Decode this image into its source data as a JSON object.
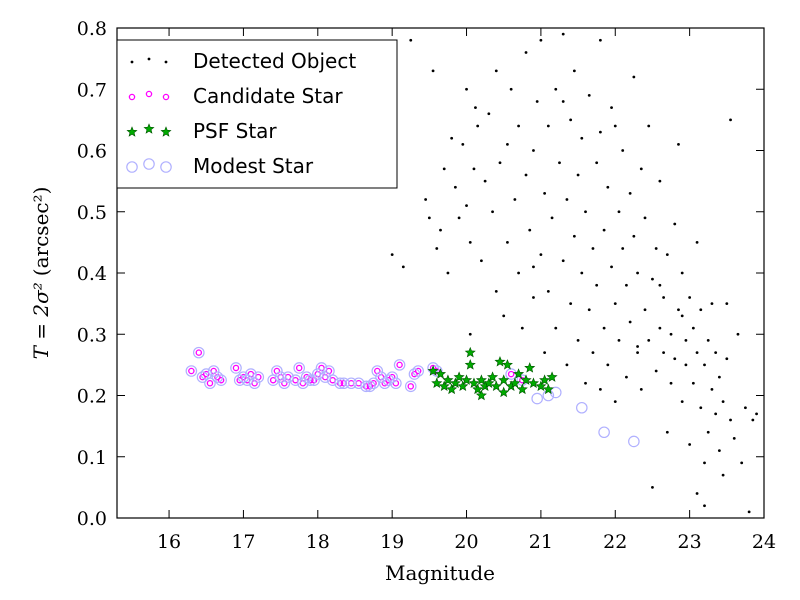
{
  "chart_data": {
    "type": "scatter",
    "title": "",
    "xlabel": "Magnitude",
    "ylabel_math": "T = 2σ²",
    "ylabel_unit": "(arcsec²)",
    "xlim": [
      15.3,
      24.0
    ],
    "ylim": [
      0.0,
      0.8
    ],
    "xticks": [
      16,
      17,
      18,
      19,
      20,
      21,
      22,
      23,
      24
    ],
    "yticks": [
      0.0,
      0.1,
      0.2,
      0.3,
      0.4,
      0.5,
      0.6,
      0.7,
      0.8
    ],
    "grid": false,
    "legend_position": "top-left",
    "series": [
      {
        "name": "Detected Object",
        "marker": "dot",
        "color": "#000000",
        "points": [
          [
            19.0,
            0.43
          ],
          [
            19.15,
            0.41
          ],
          [
            19.25,
            0.78
          ],
          [
            19.45,
            0.52
          ],
          [
            19.5,
            0.49
          ],
          [
            19.55,
            0.73
          ],
          [
            19.6,
            0.44
          ],
          [
            19.65,
            0.47
          ],
          [
            19.7,
            0.57
          ],
          [
            19.75,
            0.4
          ],
          [
            19.8,
            0.62
          ],
          [
            19.85,
            0.54
          ],
          [
            19.9,
            0.49
          ],
          [
            19.95,
            0.61
          ],
          [
            20.0,
            0.51
          ],
          [
            20.0,
            0.7
          ],
          [
            20.05,
            0.45
          ],
          [
            20.05,
            0.3
          ],
          [
            20.1,
            0.57
          ],
          [
            20.12,
            0.67
          ],
          [
            20.15,
            0.64
          ],
          [
            20.2,
            0.42
          ],
          [
            20.25,
            0.55
          ],
          [
            20.3,
            0.66
          ],
          [
            20.35,
            0.5
          ],
          [
            20.4,
            0.37
          ],
          [
            20.4,
            0.73
          ],
          [
            20.45,
            0.58
          ],
          [
            20.5,
            0.33
          ],
          [
            20.55,
            0.45
          ],
          [
            20.55,
            0.61
          ],
          [
            20.6,
            0.7
          ],
          [
            20.65,
            0.52
          ],
          [
            20.7,
            0.4
          ],
          [
            20.7,
            0.64
          ],
          [
            20.75,
            0.31
          ],
          [
            20.8,
            0.56
          ],
          [
            20.8,
            0.76
          ],
          [
            20.85,
            0.47
          ],
          [
            20.9,
            0.36
          ],
          [
            20.9,
            0.6
          ],
          [
            20.95,
            0.68
          ],
          [
            21.0,
            0.43
          ],
          [
            21.0,
            0.78
          ],
          [
            21.05,
            0.27
          ],
          [
            21.05,
            0.53
          ],
          [
            21.1,
            0.64
          ],
          [
            21.1,
            0.37
          ],
          [
            21.15,
            0.49
          ],
          [
            21.2,
            0.7
          ],
          [
            21.2,
            0.31
          ],
          [
            21.25,
            0.58
          ],
          [
            21.3,
            0.42
          ],
          [
            21.3,
            0.79
          ],
          [
            21.35,
            0.25
          ],
          [
            21.35,
            0.52
          ],
          [
            21.4,
            0.65
          ],
          [
            21.4,
            0.35
          ],
          [
            21.45,
            0.46
          ],
          [
            21.45,
            0.73
          ],
          [
            21.5,
            0.29
          ],
          [
            21.5,
            0.56
          ],
          [
            21.55,
            0.4
          ],
          [
            21.55,
            0.62
          ],
          [
            21.6,
            0.22
          ],
          [
            21.6,
            0.5
          ],
          [
            21.65,
            0.34
          ],
          [
            21.65,
            0.69
          ],
          [
            21.7,
            0.44
          ],
          [
            21.7,
            0.27
          ],
          [
            21.75,
            0.58
          ],
          [
            21.75,
            0.38
          ],
          [
            21.8,
            0.21
          ],
          [
            21.8,
            0.63
          ],
          [
            21.85,
            0.47
          ],
          [
            21.85,
            0.31
          ],
          [
            21.9,
            0.54
          ],
          [
            21.9,
            0.25
          ],
          [
            21.95,
            0.41
          ],
          [
            21.95,
            0.67
          ],
          [
            22.0,
            0.19
          ],
          [
            22.0,
            0.35
          ],
          [
            22.05,
            0.5
          ],
          [
            22.05,
            0.29
          ],
          [
            22.1,
            0.44
          ],
          [
            22.1,
            0.6
          ],
          [
            22.15,
            0.23
          ],
          [
            22.15,
            0.38
          ],
          [
            22.2,
            0.53
          ],
          [
            22.2,
            0.32
          ],
          [
            22.25,
            0.46
          ],
          [
            22.25,
            0.72
          ],
          [
            22.3,
            0.27
          ],
          [
            22.3,
            0.4
          ],
          [
            22.35,
            0.57
          ],
          [
            22.35,
            0.21
          ],
          [
            22.4,
            0.34
          ],
          [
            22.4,
            0.49
          ],
          [
            22.45,
            0.29
          ],
          [
            22.45,
            0.64
          ],
          [
            22.5,
            0.05
          ],
          [
            22.5,
            0.39
          ],
          [
            22.55,
            0.24
          ],
          [
            22.55,
            0.44
          ],
          [
            22.6,
            0.31
          ],
          [
            22.6,
            0.55
          ],
          [
            22.65,
            0.27
          ],
          [
            22.65,
            0.36
          ],
          [
            22.7,
            0.14
          ],
          [
            22.7,
            0.43
          ],
          [
            22.75,
            0.22
          ],
          [
            22.75,
            0.3
          ],
          [
            22.8,
            0.48
          ],
          [
            22.8,
            0.26
          ],
          [
            22.85,
            0.34
          ],
          [
            22.85,
            0.61
          ],
          [
            22.9,
            0.19
          ],
          [
            22.9,
            0.4
          ],
          [
            22.95,
            0.25
          ],
          [
            22.95,
            0.29
          ],
          [
            23.0,
            0.12
          ],
          [
            23.0,
            0.36
          ],
          [
            23.05,
            0.22
          ],
          [
            23.05,
            0.31
          ],
          [
            23.1,
            0.27
          ],
          [
            23.1,
            0.45
          ],
          [
            23.15,
            0.18
          ],
          [
            23.15,
            0.34
          ],
          [
            23.2,
            0.09
          ],
          [
            23.2,
            0.25
          ],
          [
            23.25,
            0.29
          ],
          [
            23.25,
            0.14
          ],
          [
            23.3,
            0.21
          ],
          [
            23.3,
            0.35
          ],
          [
            23.35,
            0.17
          ],
          [
            23.35,
            0.27
          ],
          [
            23.4,
            0.11
          ],
          [
            23.4,
            0.23
          ],
          [
            23.45,
            0.07
          ],
          [
            23.45,
            0.19
          ],
          [
            23.5,
            0.26
          ],
          [
            23.5,
            0.35
          ],
          [
            23.55,
            0.16
          ],
          [
            23.55,
            0.65
          ],
          [
            23.6,
            0.13
          ],
          [
            23.65,
            0.3
          ],
          [
            23.7,
            0.09
          ],
          [
            23.75,
            0.18
          ],
          [
            23.8,
            0.01
          ],
          [
            23.85,
            0.16
          ],
          [
            23.9,
            0.17
          ],
          [
            23.1,
            0.04
          ],
          [
            23.2,
            0.02
          ],
          [
            22.3,
            0.28
          ],
          [
            21.8,
            0.78
          ],
          [
            22.0,
            0.64
          ],
          [
            21.3,
            0.68
          ],
          [
            20.9,
            0.41
          ],
          [
            22.6,
            0.38
          ],
          [
            22.9,
            0.33
          ]
        ]
      },
      {
        "name": "Candidate Star",
        "marker": "circle-small",
        "color": "#ff00ff",
        "points": [
          [
            16.3,
            0.24
          ],
          [
            16.4,
            0.27
          ],
          [
            16.45,
            0.23
          ],
          [
            16.5,
            0.235
          ],
          [
            16.55,
            0.22
          ],
          [
            16.6,
            0.24
          ],
          [
            16.65,
            0.23
          ],
          [
            16.7,
            0.225
          ],
          [
            16.9,
            0.245
          ],
          [
            16.95,
            0.225
          ],
          [
            17.0,
            0.23
          ],
          [
            17.05,
            0.225
          ],
          [
            17.1,
            0.235
          ],
          [
            17.15,
            0.22
          ],
          [
            17.2,
            0.23
          ],
          [
            17.4,
            0.225
          ],
          [
            17.45,
            0.24
          ],
          [
            17.5,
            0.23
          ],
          [
            17.55,
            0.22
          ],
          [
            17.6,
            0.23
          ],
          [
            17.7,
            0.225
          ],
          [
            17.75,
            0.245
          ],
          [
            17.8,
            0.22
          ],
          [
            17.85,
            0.23
          ],
          [
            17.9,
            0.225
          ],
          [
            17.95,
            0.225
          ],
          [
            18.0,
            0.235
          ],
          [
            18.05,
            0.245
          ],
          [
            18.1,
            0.23
          ],
          [
            18.15,
            0.24
          ],
          [
            18.2,
            0.225
          ],
          [
            18.3,
            0.22
          ],
          [
            18.35,
            0.22
          ],
          [
            18.45,
            0.22
          ],
          [
            18.55,
            0.22
          ],
          [
            18.65,
            0.215
          ],
          [
            18.7,
            0.215
          ],
          [
            18.75,
            0.22
          ],
          [
            18.8,
            0.24
          ],
          [
            18.85,
            0.23
          ],
          [
            18.9,
            0.22
          ],
          [
            18.95,
            0.225
          ],
          [
            19.0,
            0.23
          ],
          [
            19.05,
            0.22
          ],
          [
            19.1,
            0.25
          ],
          [
            19.25,
            0.215
          ],
          [
            19.3,
            0.235
          ],
          [
            19.35,
            0.24
          ],
          [
            19.55,
            0.245
          ],
          [
            19.6,
            0.24
          ],
          [
            20.6,
            0.235
          ],
          [
            20.75,
            0.225
          ]
        ]
      },
      {
        "name": "PSF Star",
        "marker": "star",
        "color": "#00aa00",
        "points": [
          [
            19.55,
            0.24
          ],
          [
            19.6,
            0.22
          ],
          [
            19.65,
            0.235
          ],
          [
            19.7,
            0.215
          ],
          [
            19.75,
            0.225
          ],
          [
            19.8,
            0.21
          ],
          [
            19.85,
            0.22
          ],
          [
            19.9,
            0.23
          ],
          [
            19.95,
            0.215
          ],
          [
            20.0,
            0.225
          ],
          [
            20.05,
            0.27
          ],
          [
            20.05,
            0.25
          ],
          [
            20.1,
            0.22
          ],
          [
            20.15,
            0.21
          ],
          [
            20.2,
            0.225
          ],
          [
            20.25,
            0.215
          ],
          [
            20.3,
            0.22
          ],
          [
            20.35,
            0.23
          ],
          [
            20.4,
            0.215
          ],
          [
            20.45,
            0.255
          ],
          [
            20.5,
            0.225
          ],
          [
            20.55,
            0.25
          ],
          [
            20.6,
            0.215
          ],
          [
            20.65,
            0.22
          ],
          [
            20.7,
            0.235
          ],
          [
            20.75,
            0.21
          ],
          [
            20.8,
            0.225
          ],
          [
            20.85,
            0.245
          ],
          [
            20.9,
            0.22
          ],
          [
            21.0,
            0.215
          ],
          [
            21.05,
            0.225
          ],
          [
            21.1,
            0.21
          ],
          [
            21.15,
            0.23
          ],
          [
            20.2,
            0.2
          ],
          [
            20.5,
            0.205
          ]
        ]
      },
      {
        "name": "Modest Star",
        "marker": "circle-large",
        "color": "#b0b0ff",
        "points": [
          [
            16.3,
            0.24
          ],
          [
            16.4,
            0.27
          ],
          [
            16.45,
            0.23
          ],
          [
            16.5,
            0.235
          ],
          [
            16.55,
            0.22
          ],
          [
            16.6,
            0.24
          ],
          [
            16.65,
            0.23
          ],
          [
            16.7,
            0.225
          ],
          [
            16.9,
            0.245
          ],
          [
            16.95,
            0.225
          ],
          [
            17.0,
            0.23
          ],
          [
            17.05,
            0.225
          ],
          [
            17.1,
            0.235
          ],
          [
            17.15,
            0.22
          ],
          [
            17.2,
            0.23
          ],
          [
            17.4,
            0.225
          ],
          [
            17.45,
            0.24
          ],
          [
            17.5,
            0.23
          ],
          [
            17.55,
            0.22
          ],
          [
            17.6,
            0.23
          ],
          [
            17.7,
            0.225
          ],
          [
            17.75,
            0.245
          ],
          [
            17.8,
            0.22
          ],
          [
            17.85,
            0.23
          ],
          [
            17.9,
            0.225
          ],
          [
            17.95,
            0.225
          ],
          [
            18.0,
            0.235
          ],
          [
            18.05,
            0.245
          ],
          [
            18.1,
            0.23
          ],
          [
            18.15,
            0.24
          ],
          [
            18.2,
            0.225
          ],
          [
            18.3,
            0.22
          ],
          [
            18.35,
            0.22
          ],
          [
            18.45,
            0.22
          ],
          [
            18.55,
            0.22
          ],
          [
            18.65,
            0.215
          ],
          [
            18.7,
            0.215
          ],
          [
            18.75,
            0.22
          ],
          [
            18.8,
            0.24
          ],
          [
            18.85,
            0.23
          ],
          [
            18.9,
            0.22
          ],
          [
            18.95,
            0.225
          ],
          [
            19.0,
            0.23
          ],
          [
            19.05,
            0.22
          ],
          [
            19.1,
            0.25
          ],
          [
            19.25,
            0.215
          ],
          [
            19.3,
            0.235
          ],
          [
            19.35,
            0.24
          ],
          [
            19.55,
            0.245
          ],
          [
            19.6,
            0.24
          ],
          [
            20.6,
            0.235
          ],
          [
            20.75,
            0.225
          ],
          [
            20.95,
            0.195
          ],
          [
            21.1,
            0.2
          ],
          [
            21.2,
            0.205
          ],
          [
            21.55,
            0.18
          ],
          [
            21.85,
            0.14
          ],
          [
            22.25,
            0.125
          ]
        ]
      }
    ]
  }
}
